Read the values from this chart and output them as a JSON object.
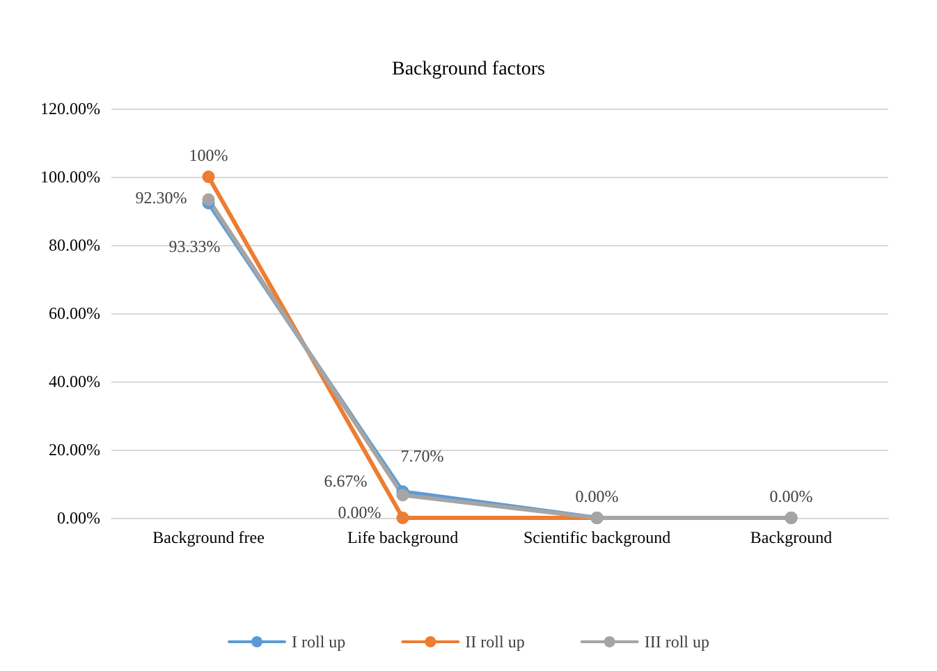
{
  "chart_data": {
    "type": "line",
    "title": "Background factors",
    "categories": [
      "Background free",
      "Life background",
      "Scientific background",
      "Background"
    ],
    "series": [
      {
        "name": "I roll up",
        "color": "#5b9bd5",
        "values": [
          92.3,
          7.7,
          0,
          0
        ],
        "value_labels": [
          "92.30%",
          "7.70%",
          null,
          null
        ]
      },
      {
        "name": "II roll up",
        "color": "#ed7d31",
        "values": [
          100,
          0,
          0,
          0
        ],
        "value_labels": [
          "100%",
          "0.00%",
          "0.00%",
          "0.00%"
        ]
      },
      {
        "name": "III roll up",
        "color": "#a5a5a5",
        "values": [
          93.33,
          6.67,
          0,
          0
        ],
        "value_labels": [
          "93.33%",
          "6.67%",
          null,
          null
        ]
      }
    ],
    "ylim": [
      0,
      120
    ],
    "yticks": [
      {
        "value": 0,
        "label": "0.00%"
      },
      {
        "value": 20,
        "label": "20.00%"
      },
      {
        "value": 40,
        "label": "40.00%"
      },
      {
        "value": 60,
        "label": "60.00%"
      },
      {
        "value": 80,
        "label": "80.00%"
      },
      {
        "value": 100,
        "label": "100.00%"
      },
      {
        "value": 120,
        "label": "120.00%"
      }
    ],
    "grid": "y",
    "legend": "bottom",
    "marker": "circle",
    "line_style": "solid"
  }
}
